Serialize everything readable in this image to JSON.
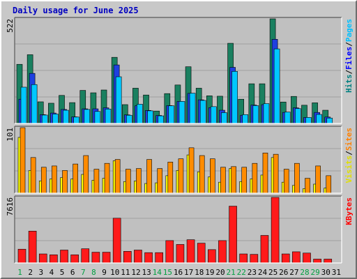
{
  "chart_data": {
    "type": "bar",
    "title": "Daily usage for June 2025",
    "categories": [
      "1",
      "2",
      "3",
      "4",
      "5",
      "6",
      "7",
      "8",
      "9",
      "10",
      "11",
      "12",
      "13",
      "14",
      "15",
      "16",
      "17",
      "18",
      "19",
      "20",
      "21",
      "22",
      "23",
      "24",
      "25",
      "26",
      "27",
      "28",
      "29",
      "30",
      "31"
    ],
    "weekend_days": [
      "1",
      "7",
      "8",
      "14",
      "15",
      "21",
      "22",
      "28",
      "29"
    ],
    "grid": true,
    "panels": [
      {
        "id": "top",
        "ymax_label": "522",
        "ymax": 522,
        "side_labels": [
          {
            "text": "Hits",
            "color": "#008080"
          },
          {
            "text": "Files",
            "color": "#0000ff"
          },
          {
            "text": "Pages",
            "color": "#00c0ff"
          }
        ],
        "series": [
          {
            "name": "Hits",
            "color": "#1a8060",
            "values": [
              295,
              343,
              108,
              101,
              140,
              104,
              165,
              153,
              167,
              330,
              94,
              176,
              142,
              62,
              149,
              192,
              283,
              176,
              138,
              136,
              400,
              121,
              198,
              198,
              522,
              107,
              135,
              91,
              103,
              66,
              0
            ]
          },
          {
            "name": "Files",
            "color": "#1e40e0",
            "values": [
              121,
              250,
              44,
              52,
              70,
              33,
              73,
              73,
              78,
              292,
              43,
              88,
              65,
              40,
              89,
              110,
              150,
              118,
              79,
              66,
              280,
              41,
              92,
              94,
              420,
              55,
              78,
              30,
              55,
              32,
              0
            ]
          },
          {
            "name": "Pages",
            "color": "#00c8ff",
            "values": [
              181,
              194,
              42,
              47,
              66,
              32,
              70,
              60,
              72,
              233,
              41,
              96,
              63,
              38,
              88,
              110,
              151,
              115,
              84,
              54,
              260,
              44,
              89,
              99,
              372,
              57,
              74,
              30,
              45,
              27,
              0
            ]
          }
        ]
      },
      {
        "id": "middle",
        "ymax_label": "101",
        "ymax": 101,
        "side_labels": [
          {
            "text": "Visits",
            "color": "#e0e000"
          },
          {
            "text": "Sites",
            "color": "#ff8000"
          }
        ],
        "series": [
          {
            "name": "Visits",
            "color": "#ffff00",
            "values": [
              86,
              35,
              19,
              22,
              24,
              22,
              29,
              20,
              23,
              50,
              18,
              19,
              15,
              16,
              27,
              35,
              59,
              33,
              25,
              17,
              38,
              18,
              22,
              28,
              55,
              17,
              12,
              7,
              14,
              8,
              0
            ]
          },
          {
            "name": "Sites",
            "color": "#ff8c00",
            "values": [
              101,
              55,
              40,
              42,
              35,
              45,
              58,
              37,
              46,
              52,
              37,
              38,
              52,
              38,
              48,
              53,
              70,
              58,
              53,
              40,
              41,
              40,
              46,
              62,
              60,
              37,
              46,
              23,
              42,
              27,
              0
            ]
          }
        ]
      },
      {
        "id": "bottom",
        "ymax_label": "7616",
        "ymax": 7616,
        "side_labels": [
          {
            "text": "KBytes",
            "color": "#ff0000"
          }
        ],
        "series": [
          {
            "name": "KBytes",
            "color": "#ff1a1a",
            "values": [
              1600,
              3700,
              1050,
              950,
              1500,
              950,
              1650,
              1250,
              1250,
              5200,
              1350,
              1500,
              1200,
              1200,
              2600,
              2150,
              2700,
              2300,
              1550,
              2600,
              6600,
              1050,
              1000,
              3200,
              7616,
              1050,
              1300,
              1150,
              450,
              450,
              0
            ]
          }
        ]
      }
    ]
  }
}
